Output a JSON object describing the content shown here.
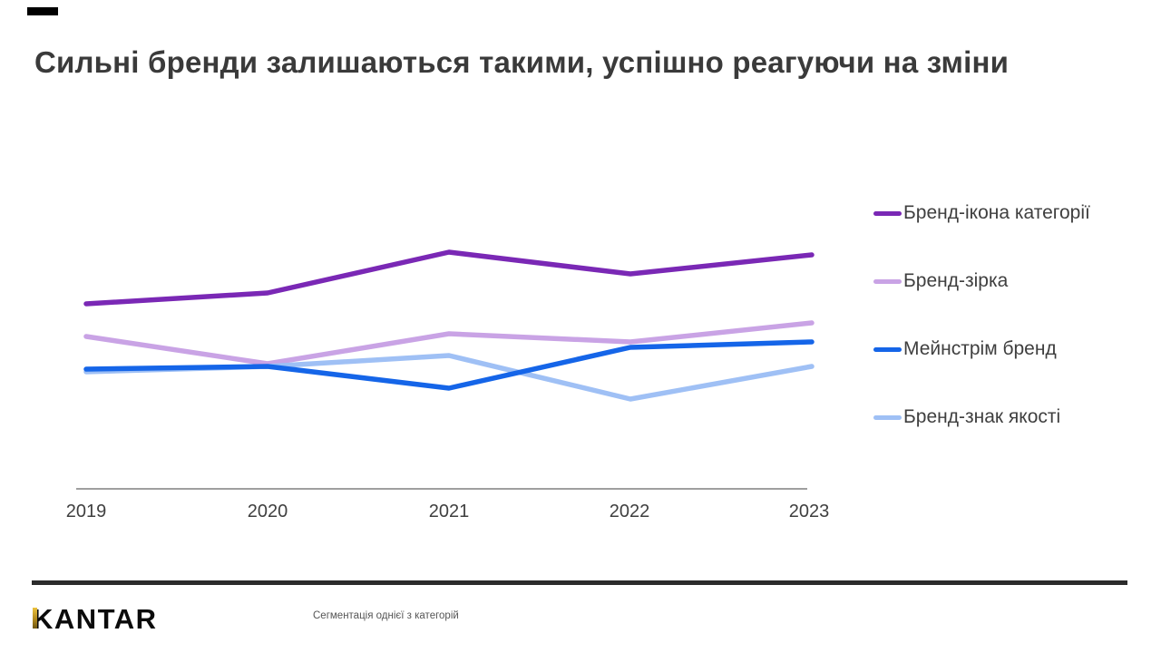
{
  "title": "Сильні бренди залишаються такими, успішно реагуючи на зміни",
  "chart_data": {
    "type": "line",
    "categories": [
      "2019",
      "2020",
      "2021",
      "2022",
      "2023"
    ],
    "series": [
      {
        "name": "Бренд-ікона категорії",
        "color": "#7A28B5",
        "values": [
          68,
          72,
          87,
          79,
          86
        ],
        "z": 2
      },
      {
        "name": "Бренд-зірка",
        "color": "#C9A3E5",
        "values": [
          56,
          46,
          57,
          54,
          61
        ],
        "z": 1
      },
      {
        "name": "Мейнстрім бренд",
        "color": "#1565E8",
        "values": [
          44,
          45,
          37,
          52,
          54
        ],
        "z": 4
      },
      {
        "name": "Бренд-знак якості",
        "color": "#9FC0F5",
        "values": [
          43,
          45,
          49,
          33,
          45
        ],
        "z": 3
      }
    ],
    "title": "",
    "xlabel": "",
    "ylabel": "",
    "ylim": [
      0,
      100
    ],
    "values_estimated": true,
    "y_axis_visible": false,
    "grid": false,
    "legend_position": "right"
  },
  "footer": {
    "logo": "KANTAR",
    "note": "Сегментація однієї з категорій"
  },
  "colors": {
    "accent_dash": "#000000",
    "title_text": "#3A3A3A",
    "axis_line": "#666666",
    "axis_text": "#3F3F3F",
    "footer_bar": "#2B2B2B",
    "logo_gold": "#C9A227"
  }
}
